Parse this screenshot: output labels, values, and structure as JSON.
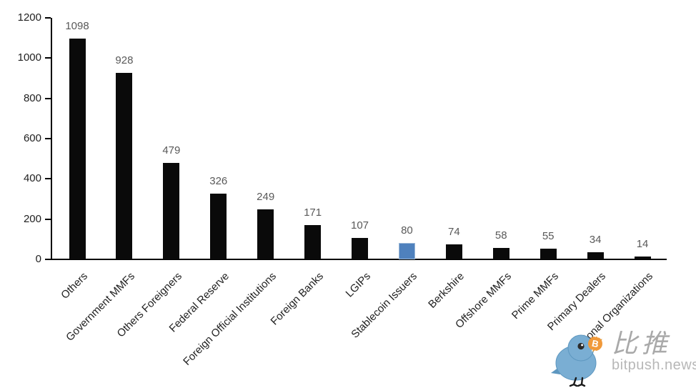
{
  "chart_data": {
    "type": "bar",
    "title": "",
    "xlabel": "",
    "ylabel": "",
    "categories": [
      "Others",
      "Government MMFs",
      "Others Foreigners",
      "Federal Reserve",
      "Foreign Official Institutions",
      "Foreign Banks",
      "LGIPs",
      "Stablecoin Issuers",
      "Berkshire",
      "Offshore MMFs",
      "Prime MMFs",
      "Primary Dealers",
      "International Organizations"
    ],
    "values": [
      1098,
      928,
      479,
      326,
      249,
      171,
      107,
      80,
      74,
      58,
      55,
      34,
      14
    ],
    "value_labels": [
      "1098",
      "928",
      "479",
      "326",
      "249",
      "171",
      "107",
      "80",
      "74",
      "58",
      "55",
      "34",
      "14"
    ],
    "highlight_category": "Stablecoin Issuers",
    "highlight_index": 7,
    "ylim": [
      0,
      1200
    ],
    "yticks": [
      0,
      200,
      400,
      600,
      800,
      1000,
      1200
    ],
    "grid": false,
    "legend": "none",
    "colors": {
      "bar": "#0a0a0a",
      "highlight_bar": "#4f81bd",
      "highlight_border": "#9db9d8",
      "value_label": "#595959",
      "axis_label": "#1f1f1f",
      "axis_line": "#000000"
    }
  },
  "watermark": {
    "brand_cn": "比推",
    "brand_site": "bitpush.news",
    "bird_icon": "bitpush-bird-icon",
    "coin_symbol": "B",
    "colors": {
      "bird": "#7aaed3",
      "bird_edge": "#5d97c0",
      "beak": "#f6bf3e",
      "coin": "#f0993a",
      "text_cn": "#a9a9a9",
      "text_site": "#b7b7b7"
    }
  }
}
